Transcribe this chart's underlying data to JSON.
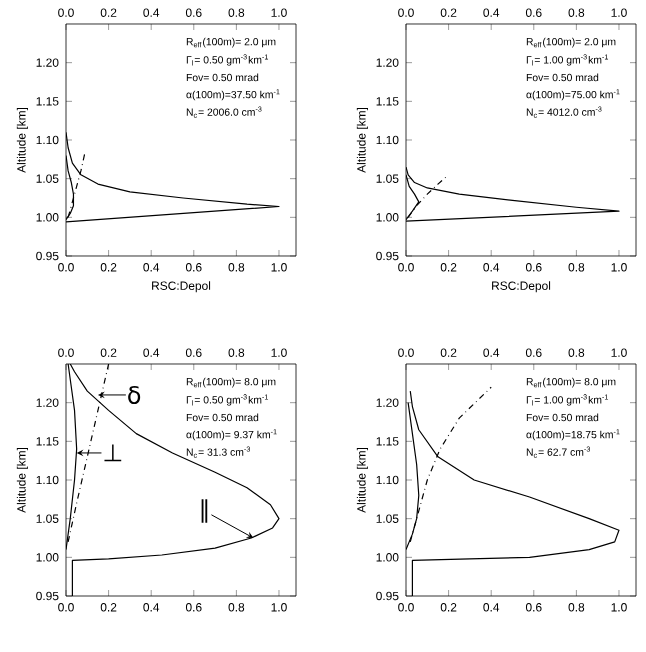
{
  "chart_data": [
    {
      "type": "line",
      "xlabel": "RSC:Depol",
      "ylabel": "Altitude [km]",
      "xlim": [
        0,
        1.08
      ],
      "ylim": [
        0.95,
        1.25
      ],
      "xticks": [
        {
          "value": 0,
          "label": "0.0"
        },
        {
          "value": 0.2,
          "label": "0.2"
        },
        {
          "value": 0.4,
          "label": "0.4"
        },
        {
          "value": 0.6,
          "label": "0.6"
        },
        {
          "value": 0.8,
          "label": "0.8"
        },
        {
          "value": 1.0,
          "label": "1.0"
        }
      ],
      "x2lim": [
        0,
        1.08
      ],
      "x2ticks": [
        {
          "value": 0,
          "label": "0.0"
        },
        {
          "value": 0.2,
          "label": "0.2"
        },
        {
          "value": 0.4,
          "label": "0.4"
        },
        {
          "value": 0.6,
          "label": "0.6"
        },
        {
          "value": 0.8,
          "label": "0.8"
        },
        {
          "value": 1.0,
          "label": "1.0"
        }
      ],
      "yticks": [
        {
          "value": 0.95,
          "label": "0.95"
        },
        {
          "value": 1.0,
          "label": "1.00"
        },
        {
          "value": 1.05,
          "label": "1.05"
        },
        {
          "value": 1.1,
          "label": "1.10"
        },
        {
          "value": 1.15,
          "label": "1.15"
        },
        {
          "value": 1.2,
          "label": "1.20"
        }
      ],
      "series": [
        {
          "type": "line",
          "color": "#000000",
          "line_style": "solid",
          "x": [
            0,
            1.0,
            0.85,
            0.55,
            0.3,
            0.15,
            0.07,
            0.03,
            0.01,
            0
          ],
          "values": [
            0.994,
            1.014,
            1.017,
            1.025,
            1.033,
            1.043,
            1.055,
            1.07,
            1.09,
            1.11
          ]
        },
        {
          "type": "line",
          "color": "#000000",
          "line_style": "solid",
          "x": [
            0,
            0.02,
            0.035,
            0.035,
            0.025,
            0.01,
            0
          ],
          "values": [
            0.997,
            1.005,
            1.015,
            1.03,
            1.045,
            1.06,
            1.08
          ]
        },
        {
          "type": "line",
          "color": "#000000",
          "line_style": "dashdot",
          "x": [
            0.01,
            0.03,
            0.05,
            0.07,
            0.09
          ],
          "values": [
            1.0,
            1.02,
            1.04,
            1.06,
            1.085
          ]
        }
      ],
      "annotations": [
        "R$_{eff}$(100m)=  2.0 μm",
        "Γ$_{l}$= 0.50 gm$^{-3}$km$^{-1}$",
        "Fov= 0.50 mrad",
        "α(100m)=37.50 km$^{-1}$",
        "N$_{c}$= 2006.0 cm$^{-3}$"
      ]
    },
    {
      "type": "line",
      "xlabel": "RSC:Depol",
      "ylabel": "Altitude [km]",
      "xlim": [
        0,
        1.08
      ],
      "ylim": [
        0.95,
        1.25
      ],
      "xticks": [
        {
          "value": 0,
          "label": "0.0"
        },
        {
          "value": 0.2,
          "label": "0.2"
        },
        {
          "value": 0.4,
          "label": "0.4"
        },
        {
          "value": 0.6,
          "label": "0.6"
        },
        {
          "value": 0.8,
          "label": "0.8"
        },
        {
          "value": 1.0,
          "label": "1.0"
        }
      ],
      "x2lim": [
        0,
        1.08
      ],
      "x2ticks": [
        {
          "value": 0,
          "label": "0.0"
        },
        {
          "value": 0.2,
          "label": "0.2"
        },
        {
          "value": 0.4,
          "label": "0.4"
        },
        {
          "value": 0.6,
          "label": "0.6"
        },
        {
          "value": 0.8,
          "label": "0.8"
        },
        {
          "value": 1.0,
          "label": "1.0"
        }
      ],
      "yticks": [
        {
          "value": 0.95,
          "label": "0.95"
        },
        {
          "value": 1.0,
          "label": "1.00"
        },
        {
          "value": 1.05,
          "label": "1.05"
        },
        {
          "value": 1.1,
          "label": "1.10"
        },
        {
          "value": 1.15,
          "label": "1.15"
        },
        {
          "value": 1.2,
          "label": "1.20"
        }
      ],
      "series": [
        {
          "type": "line",
          "color": "#000000",
          "line_style": "solid",
          "x": [
            0,
            1.0,
            0.8,
            0.5,
            0.25,
            0.1,
            0.04,
            0.01,
            0
          ],
          "values": [
            0.995,
            1.008,
            1.013,
            1.022,
            1.03,
            1.038,
            1.045,
            1.055,
            1.065
          ]
        },
        {
          "type": "line",
          "color": "#000000",
          "line_style": "solid",
          "x": [
            0,
            0.03,
            0.06,
            0.04,
            0.015,
            0
          ],
          "values": [
            0.997,
            1.008,
            1.02,
            1.03,
            1.04,
            1.055
          ]
        },
        {
          "type": "line",
          "color": "#000000",
          "line_style": "dashdot",
          "x": [
            0.01,
            0.05,
            0.1,
            0.15,
            0.2
          ],
          "values": [
            1.0,
            1.015,
            1.03,
            1.043,
            1.055
          ]
        }
      ],
      "annotations": [
        "R$_{eff}$(100m)=  2.0 μm",
        "Γ$_{l}$= 1.00 gm$^{-3}$km$^{-1}$",
        "Fov= 0.50 mrad",
        "α(100m)=75.00 km$^{-1}$",
        "N$_{c}$= 4012.0 cm$^{-3}$"
      ]
    },
    {
      "type": "line",
      "ylabel": "Altitude [km]",
      "xlim": [
        0,
        1.08
      ],
      "ylim": [
        0.95,
        1.25
      ],
      "xticks": [
        {
          "value": 0,
          "label": "0.0"
        },
        {
          "value": 0.2,
          "label": "0.2"
        },
        {
          "value": 0.4,
          "label": "0.4"
        },
        {
          "value": 0.6,
          "label": "0.6"
        },
        {
          "value": 0.8,
          "label": "0.8"
        },
        {
          "value": 1.0,
          "label": "1.0"
        }
      ],
      "x2lim": [
        0,
        1.08
      ],
      "x2ticks": [
        {
          "value": 0,
          "label": "0.0"
        },
        {
          "value": 0.2,
          "label": "0.2"
        },
        {
          "value": 0.4,
          "label": "0.4"
        },
        {
          "value": 0.6,
          "label": "0.6"
        },
        {
          "value": 0.8,
          "label": "0.8"
        },
        {
          "value": 1.0,
          "label": "1.0"
        }
      ],
      "yticks": [
        {
          "value": 0.95,
          "label": "0.95"
        },
        {
          "value": 1.0,
          "label": "1.00"
        },
        {
          "value": 1.05,
          "label": "1.05"
        },
        {
          "value": 1.1,
          "label": "1.10"
        },
        {
          "value": 1.15,
          "label": "1.15"
        },
        {
          "value": 1.2,
          "label": "1.20"
        }
      ],
      "series": [
        {
          "type": "line",
          "color": "#000000",
          "line_style": "solid",
          "x": [
            0.03,
            0.03,
            0.2,
            0.45,
            0.7,
            0.87,
            0.97,
            1.0,
            0.96,
            0.85,
            0.7,
            0.5,
            0.33,
            0.2,
            0.1,
            0.04,
            0.02
          ],
          "values": [
            0.95,
            0.996,
            0.998,
            1.003,
            1.012,
            1.025,
            1.038,
            1.05,
            1.068,
            1.09,
            1.11,
            1.135,
            1.16,
            1.19,
            1.215,
            1.24,
            1.25
          ]
        },
        {
          "type": "line",
          "color": "#000000",
          "line_style": "solid",
          "x": [
            0,
            0.02,
            0.04,
            0.05,
            0.04,
            0.02,
            0.01
          ],
          "values": [
            1.01,
            1.05,
            1.1,
            1.14,
            1.19,
            1.23,
            1.25
          ]
        },
        {
          "type": "line",
          "color": "#000000",
          "line_style": "dashdot",
          "x": [
            0.01,
            0.05,
            0.1,
            0.15,
            0.2
          ],
          "values": [
            1.02,
            1.07,
            1.13,
            1.19,
            1.25
          ]
        }
      ],
      "annotations": [
        "R$_{eff}$(100m)=  8.0 μm",
        "Γ$_{l}$= 0.50 gm$^{-3}$km$^{-1}$",
        "Fov= 0.50 mrad",
        "α(100m)= 9.37 km$^{-1}$",
        "N$_{c}$=  31.3 cm$^{-3}$",
        {
          "text": "δ",
          "x": 0.15,
          "y": 1.21
        },
        {
          "text": "⊥",
          "x": 0.05,
          "y": 1.135
        },
        {
          "text": "∥",
          "x": 0.88,
          "y": 1.025
        }
      ]
    },
    {
      "type": "line",
      "ylabel": "Altitude [km]",
      "xlim": [
        0,
        1.08
      ],
      "ylim": [
        0.95,
        1.25
      ],
      "xticks": [
        {
          "value": 0,
          "label": "0.0"
        },
        {
          "value": 0.2,
          "label": "0.2"
        },
        {
          "value": 0.4,
          "label": "0.4"
        },
        {
          "value": 0.6,
          "label": "0.6"
        },
        {
          "value": 0.8,
          "label": "0.8"
        },
        {
          "value": 1.0,
          "label": "1.0"
        }
      ],
      "x2lim": [
        0,
        1.08
      ],
      "x2ticks": [
        {
          "value": 0,
          "label": "0.0"
        },
        {
          "value": 0.2,
          "label": "0.2"
        },
        {
          "value": 0.4,
          "label": "0.4"
        },
        {
          "value": 0.6,
          "label": "0.6"
        },
        {
          "value": 0.8,
          "label": "0.8"
        },
        {
          "value": 1.0,
          "label": "1.0"
        }
      ],
      "yticks": [
        {
          "value": 0.95,
          "label": "0.95"
        },
        {
          "value": 1.0,
          "label": "1.00"
        },
        {
          "value": 1.05,
          "label": "1.05"
        },
        {
          "value": 1.1,
          "label": "1.10"
        },
        {
          "value": 1.15,
          "label": "1.15"
        },
        {
          "value": 1.2,
          "label": "1.20"
        }
      ],
      "series": [
        {
          "type": "line",
          "color": "#000000",
          "line_style": "solid",
          "x": [
            0.03,
            0.03,
            0.3,
            0.58,
            0.86,
            0.98,
            1.0,
            0.86,
            0.58,
            0.32,
            0.15,
            0.06,
            0.03,
            0.02
          ],
          "values": [
            0.95,
            0.996,
            0.998,
            1.0,
            1.01,
            1.02,
            1.035,
            1.05,
            1.078,
            1.1,
            1.13,
            1.165,
            1.195,
            1.215
          ]
        },
        {
          "type": "line",
          "color": "#000000",
          "line_style": "solid",
          "x": [
            0,
            0.03,
            0.05,
            0.06,
            0.05,
            0.03,
            0.01
          ],
          "values": [
            1.01,
            1.03,
            1.05,
            1.08,
            1.12,
            1.16,
            1.2
          ]
        },
        {
          "type": "line",
          "color": "#000000",
          "line_style": "dashdot",
          "x": [
            0.02,
            0.05,
            0.1,
            0.16,
            0.25,
            0.4
          ],
          "values": [
            1.02,
            1.05,
            1.1,
            1.14,
            1.18,
            1.22
          ]
        }
      ],
      "annotations": [
        "R$_{eff}$(100m)=  8.0 μm",
        "Γ$_{l}$= 1.00 gm$^{-3}$km$^{-1}$",
        "Fov= 0.50 mrad",
        "α(100m)=18.75 km$^{-1}$",
        "N$_{c}$=  62.7 cm$^{-3}$"
      ]
    }
  ]
}
